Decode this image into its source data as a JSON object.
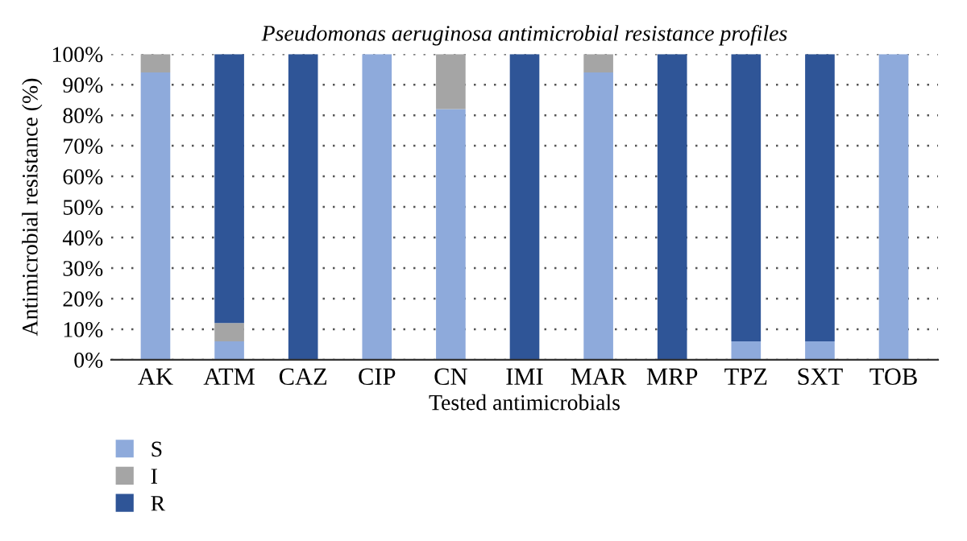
{
  "chart_data": {
    "type": "bar",
    "title": "Pseudomonas aeruginosa antimicrobial resistance profiles",
    "xlabel": "Tested antimicrobials",
    "ylabel": "Antimicrobial resistance (%)",
    "categories": [
      "AK",
      "ATM",
      "CAZ",
      "CIP",
      "CN",
      "IMI",
      "MAR",
      "MRP",
      "TPZ",
      "SXT",
      "TOB"
    ],
    "stacked": true,
    "series": [
      {
        "name": "S",
        "color": "#8eaadb",
        "values": [
          94,
          6,
          0,
          100,
          82,
          0,
          94,
          0,
          6,
          6,
          100
        ]
      },
      {
        "name": "I",
        "color": "#a5a5a5",
        "values": [
          6,
          6,
          0,
          0,
          18,
          0,
          6,
          0,
          0,
          0,
          0
        ]
      },
      {
        "name": "R",
        "color": "#2f5597",
        "values": [
          0,
          88,
          100,
          0,
          0,
          100,
          0,
          100,
          94,
          94,
          0
        ]
      }
    ],
    "ylim": [
      0,
      100
    ],
    "yticks": [
      {
        "value": 0,
        "label": "0%"
      },
      {
        "value": 10,
        "label": "10%"
      },
      {
        "value": 20,
        "label": "20%"
      },
      {
        "value": 30,
        "label": "30%"
      },
      {
        "value": 40,
        "label": "40%"
      },
      {
        "value": 50,
        "label": "50%"
      },
      {
        "value": 60,
        "label": "60%"
      },
      {
        "value": 70,
        "label": "70%"
      },
      {
        "value": 80,
        "label": "80%"
      },
      {
        "value": 90,
        "label": "90%"
      },
      {
        "value": 100,
        "label": "100%"
      }
    ],
    "grid": "y",
    "legend": "bottom left"
  }
}
